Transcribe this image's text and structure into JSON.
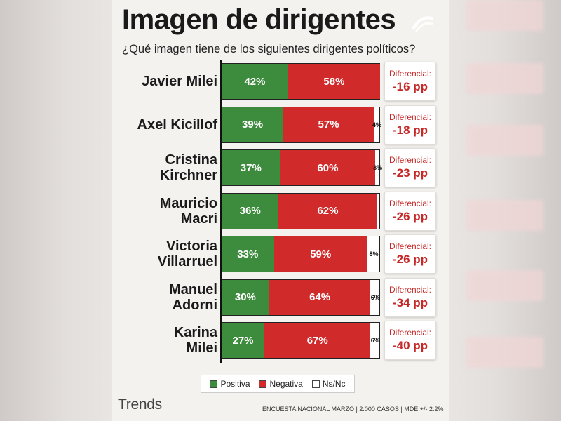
{
  "header": {
    "title": "Imagen de dirigentes",
    "subtitle": "¿Qué imagen tiene de los siguientes dirigentes políticos?"
  },
  "colors": {
    "positive": "#3d8b3d",
    "negative": "#d12a2a",
    "nsnc": "#ffffff",
    "diff_text": "#c62828"
  },
  "chart_data": {
    "type": "bar",
    "orientation": "horizontal-stacked",
    "categories": [
      "Javier Milei",
      "Axel Kicillof",
      "Cristina Kirchner",
      "Mauricio Macri",
      "Victoria Villarruel",
      "Manuel Adorni",
      "Karina Milei"
    ],
    "label_lines": [
      [
        "Javier Milei"
      ],
      [
        "Axel Kicillof"
      ],
      [
        "Cristina",
        "Kirchner"
      ],
      [
        "Mauricio",
        "Macri"
      ],
      [
        "Victoria",
        "Villarruel"
      ],
      [
        "Manuel",
        "Adorni"
      ],
      [
        "Karina",
        "Milei"
      ]
    ],
    "series": [
      {
        "name": "Positiva",
        "values": [
          42,
          39,
          37,
          36,
          33,
          30,
          27
        ]
      },
      {
        "name": "Negativa",
        "values": [
          58,
          57,
          60,
          62,
          59,
          64,
          67
        ]
      },
      {
        "name": "Ns/Nc",
        "values": [
          0,
          4,
          3,
          2,
          8,
          6,
          6
        ]
      }
    ],
    "value_labels": {
      "Positiva": [
        "42%",
        "39%",
        "37%",
        "36%",
        "33%",
        "30%",
        "27%"
      ],
      "Negativa": [
        "58%",
        "57%",
        "60%",
        "62%",
        "59%",
        "64%",
        "67%"
      ],
      "Ns/Nc": [
        "",
        "4%",
        "3%",
        "",
        "8%",
        "6%",
        "6%"
      ]
    },
    "differential_label": "Diferencial:",
    "differentials": [
      "-16 pp",
      "-18 pp",
      "-23 pp",
      "-26 pp",
      "-26 pp",
      "-34 pp",
      "-40 pp"
    ],
    "xlim": [
      0,
      100
    ],
    "legend": [
      "Positiva",
      "Negativa",
      "Ns/Nc"
    ],
    "legend_position": "bottom"
  },
  "footer": {
    "brand": "Trends",
    "note": "ENCUESTA NACIONAL MARZO | 2.000 CASOS | MDE +/- 2.2%"
  }
}
